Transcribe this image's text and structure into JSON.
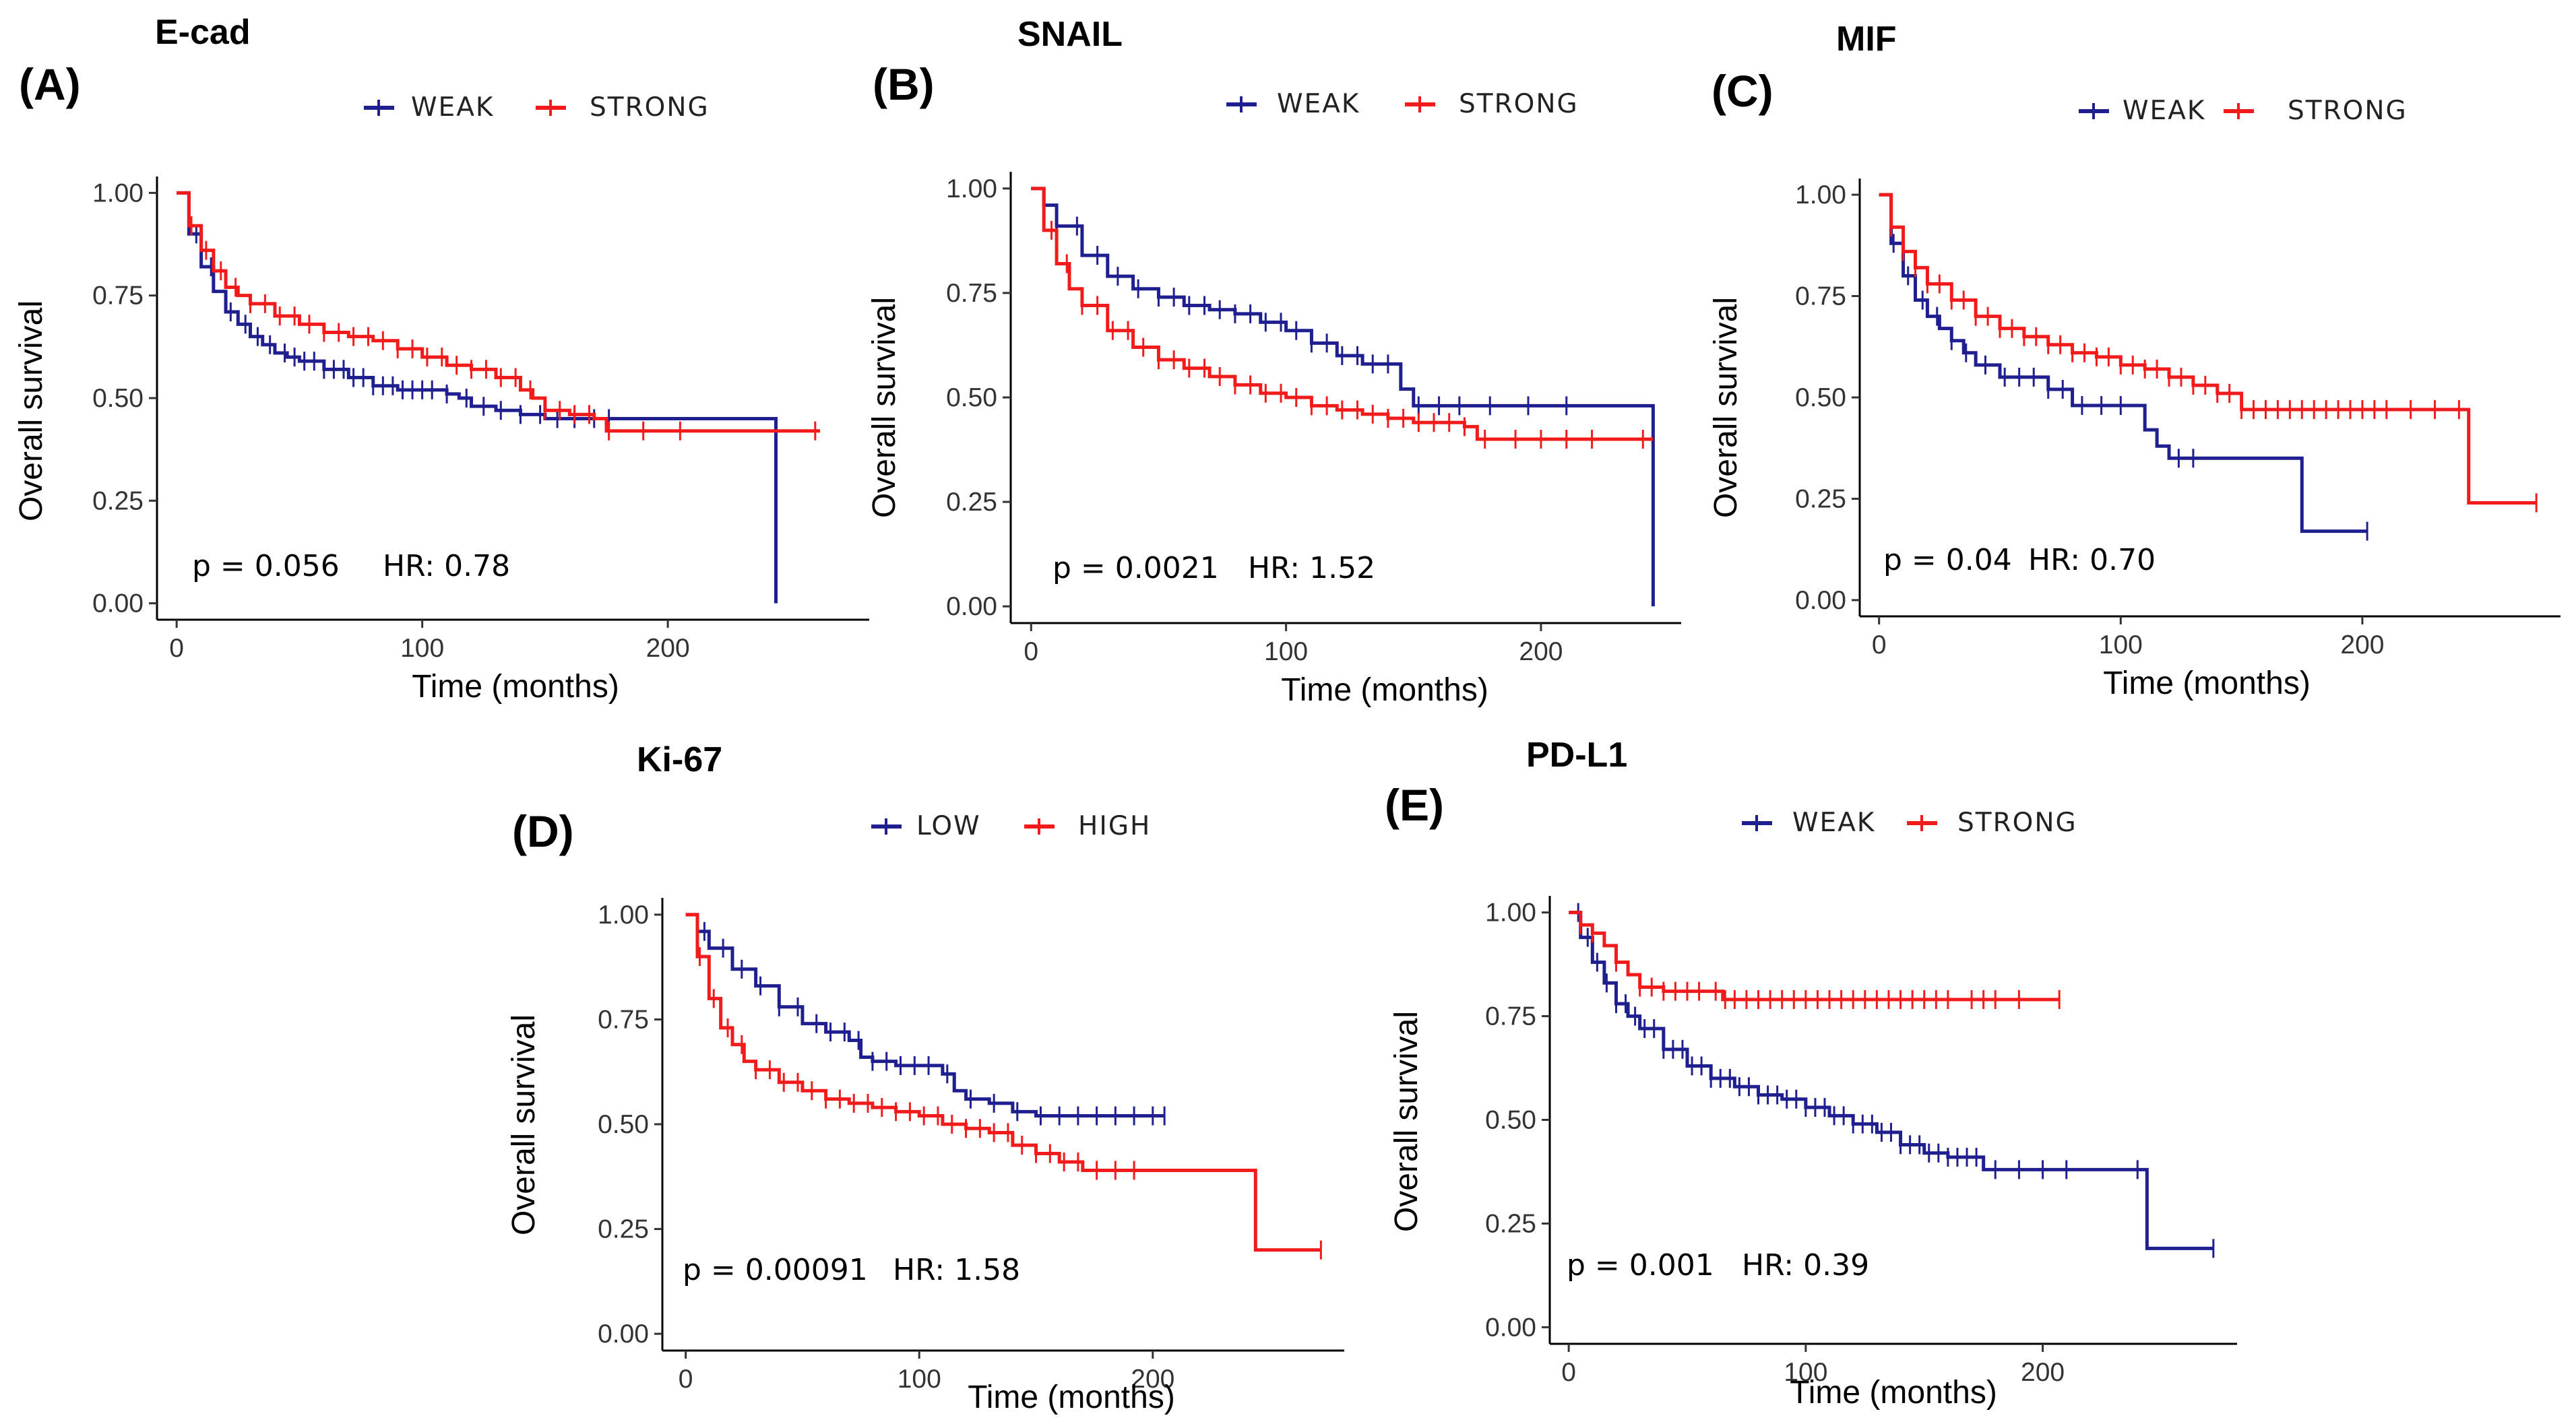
{
  "figure": {
    "colors": {
      "weak": "#1f1f8f",
      "strong": "#f21b1b"
    }
  },
  "chart_data": [
    {
      "type": "line",
      "id": "A",
      "panel_label": "(A)",
      "title": "E-cad",
      "xlabel": "Time (months)",
      "ylabel": "Overall survival",
      "xlim": [
        -8,
        282
      ],
      "ylim": [
        -0.04,
        1.04
      ],
      "xticks": [
        "0",
        "100",
        "200"
      ],
      "yticks": [
        "0.00",
        "0.25",
        "0.50",
        "0.75",
        "1.00"
      ],
      "p_text": "p = 0.056",
      "hr_text": "HR: 0.78",
      "legend": [
        "WEAK",
        "STRONG"
      ],
      "series": [
        {
          "name": "WEAK",
          "color": "#1f1f8f",
          "x": [
            0,
            5,
            10,
            15,
            20,
            25,
            30,
            35,
            40,
            45,
            50,
            60,
            70,
            80,
            90,
            100,
            110,
            115,
            120,
            130,
            140,
            150,
            175,
            244,
            244
          ],
          "y": [
            1.0,
            0.9,
            0.82,
            0.76,
            0.71,
            0.68,
            0.65,
            0.63,
            0.61,
            0.6,
            0.59,
            0.57,
            0.55,
            0.53,
            0.52,
            0.52,
            0.51,
            0.5,
            0.48,
            0.47,
            0.46,
            0.45,
            0.45,
            0.45,
            0.0
          ],
          "censor_x": [
            8,
            14,
            22,
            28,
            33,
            38,
            44,
            48,
            52,
            56,
            60,
            64,
            68,
            72,
            76,
            80,
            84,
            88,
            92,
            96,
            100,
            104,
            110,
            118,
            125,
            132,
            140,
            148,
            155,
            162,
            170,
            176
          ]
        },
        {
          "name": "STRONG",
          "color": "#f21b1b",
          "x": [
            0,
            5,
            10,
            15,
            20,
            25,
            30,
            40,
            50,
            60,
            70,
            80,
            90,
            100,
            110,
            120,
            130,
            140,
            145,
            150,
            160,
            170,
            175,
            262
          ],
          "y": [
            1.0,
            0.92,
            0.86,
            0.81,
            0.77,
            0.75,
            0.73,
            0.7,
            0.68,
            0.66,
            0.65,
            0.64,
            0.62,
            0.6,
            0.58,
            0.57,
            0.55,
            0.52,
            0.5,
            0.47,
            0.46,
            0.45,
            0.42,
            0.42
          ],
          "censor_x": [
            6,
            12,
            18,
            24,
            30,
            36,
            42,
            48,
            54,
            60,
            66,
            72,
            78,
            84,
            90,
            96,
            102,
            108,
            114,
            120,
            126,
            132,
            138,
            144,
            150,
            156,
            162,
            168,
            176,
            190,
            205,
            260
          ]
        }
      ]
    },
    {
      "type": "line",
      "id": "B",
      "panel_label": "(B)",
      "title": "SNAIL",
      "xlabel": "Time (months)",
      "ylabel": "Overall survival",
      "xlim": [
        -8,
        255
      ],
      "ylim": [
        -0.04,
        1.04
      ],
      "xticks": [
        "0",
        "100",
        "200"
      ],
      "yticks": [
        "0.00",
        "0.25",
        "0.50",
        "0.75",
        "1.00"
      ],
      "p_text": "p = 0.0021",
      "hr_text": "HR: 1.52",
      "legend": [
        "WEAK",
        "STRONG"
      ],
      "series": [
        {
          "name": "WEAK",
          "color": "#1f1f8f",
          "x": [
            0,
            5,
            10,
            20,
            30,
            40,
            50,
            60,
            70,
            80,
            90,
            100,
            110,
            120,
            130,
            140,
            145,
            150,
            244,
            244
          ],
          "y": [
            1.0,
            0.96,
            0.91,
            0.84,
            0.79,
            0.76,
            0.74,
            0.72,
            0.71,
            0.7,
            0.68,
            0.66,
            0.63,
            0.6,
            0.58,
            0.58,
            0.52,
            0.48,
            0.48,
            0.0
          ],
          "censor_x": [
            10,
            18,
            26,
            34,
            42,
            50,
            56,
            62,
            68,
            74,
            80,
            86,
            92,
            98,
            104,
            110,
            116,
            122,
            128,
            134,
            140,
            152,
            160,
            168,
            180,
            195,
            210
          ]
        },
        {
          "name": "STRONG",
          "color": "#f21b1b",
          "x": [
            0,
            5,
            10,
            15,
            20,
            30,
            40,
            50,
            60,
            70,
            80,
            90,
            100,
            110,
            120,
            130,
            140,
            150,
            160,
            170,
            175,
            244
          ],
          "y": [
            1.0,
            0.9,
            0.82,
            0.76,
            0.72,
            0.66,
            0.62,
            0.59,
            0.57,
            0.55,
            0.53,
            0.51,
            0.5,
            0.48,
            0.47,
            0.46,
            0.45,
            0.44,
            0.44,
            0.43,
            0.4,
            0.4
          ],
          "censor_x": [
            8,
            14,
            20,
            26,
            32,
            38,
            44,
            50,
            56,
            62,
            68,
            74,
            80,
            86,
            92,
            98,
            104,
            110,
            116,
            122,
            128,
            134,
            140,
            146,
            152,
            158,
            164,
            170,
            178,
            190,
            200,
            210,
            220,
            240
          ]
        }
      ]
    },
    {
      "type": "line",
      "id": "C",
      "panel_label": "(C)",
      "title": "MIF",
      "xlabel": "Time (months)",
      "ylabel": "Overall survival",
      "xlim": [
        -8,
        282
      ],
      "ylim": [
        -0.04,
        1.04
      ],
      "xticks": [
        "0",
        "100",
        "200"
      ],
      "yticks": [
        "0.00",
        "0.25",
        "0.50",
        "0.75",
        "1.00"
      ],
      "p_text": "p = 0.04",
      "hr_text": "HR: 0.70",
      "legend": [
        "WEAK",
        "STRONG"
      ],
      "series": [
        {
          "name": "WEAK",
          "color": "#1f1f8f",
          "x": [
            0,
            5,
            10,
            15,
            20,
            25,
            30,
            35,
            40,
            50,
            60,
            70,
            80,
            90,
            100,
            110,
            115,
            120,
            130,
            140,
            175,
            202
          ],
          "y": [
            1.0,
            0.88,
            0.8,
            0.74,
            0.7,
            0.67,
            0.64,
            0.61,
            0.58,
            0.55,
            0.55,
            0.52,
            0.48,
            0.48,
            0.48,
            0.42,
            0.38,
            0.35,
            0.35,
            0.35,
            0.17,
            0.17
          ],
          "censor_x": [
            6,
            12,
            18,
            24,
            30,
            36,
            44,
            52,
            58,
            64,
            70,
            76,
            84,
            92,
            100,
            124,
            130,
            202
          ]
        },
        {
          "name": "STRONG",
          "color": "#f21b1b",
          "x": [
            0,
            5,
            10,
            15,
            20,
            30,
            40,
            50,
            60,
            70,
            80,
            90,
            100,
            110,
            120,
            130,
            140,
            150,
            160,
            244,
            244,
            272
          ],
          "y": [
            1.0,
            0.92,
            0.86,
            0.82,
            0.78,
            0.74,
            0.7,
            0.67,
            0.65,
            0.63,
            0.61,
            0.6,
            0.58,
            0.57,
            0.55,
            0.53,
            0.51,
            0.47,
            0.47,
            0.47,
            0.24,
            0.24
          ],
          "censor_x": [
            5,
            10,
            15,
            20,
            25,
            30,
            35,
            40,
            45,
            50,
            55,
            60,
            65,
            70,
            75,
            80,
            85,
            90,
            95,
            100,
            105,
            110,
            115,
            120,
            125,
            130,
            135,
            140,
            145,
            150,
            155,
            160,
            165,
            170,
            175,
            180,
            185,
            190,
            195,
            200,
            205,
            210,
            220,
            230,
            240,
            272
          ]
        }
      ]
    },
    {
      "type": "line",
      "id": "D",
      "panel_label": "(D)",
      "title": "Ki-67",
      "xlabel": "Time (months)",
      "ylabel": "Overall survival",
      "xlim": [
        -10,
        282
      ],
      "ylim": [
        -0.04,
        1.04
      ],
      "xticks": [
        "0",
        "100",
        "200"
      ],
      "yticks": [
        "0.00",
        "0.25",
        "0.50",
        "0.75",
        "1.00"
      ],
      "p_text": "p = 0.00091",
      "hr_text": "HR: 1.58",
      "legend": [
        "LOW",
        "HIGH"
      ],
      "series": [
        {
          "name": "LOW",
          "color": "#1f1f8f",
          "x": [
            0,
            5,
            10,
            20,
            30,
            40,
            50,
            60,
            70,
            75,
            80,
            90,
            100,
            110,
            115,
            120,
            130,
            140,
            150,
            160,
            205
          ],
          "y": [
            1.0,
            0.96,
            0.92,
            0.87,
            0.83,
            0.78,
            0.74,
            0.72,
            0.7,
            0.66,
            0.65,
            0.64,
            0.64,
            0.62,
            0.58,
            0.56,
            0.55,
            0.53,
            0.52,
            0.52,
            0.52
          ],
          "censor_x": [
            8,
            16,
            24,
            32,
            40,
            48,
            56,
            62,
            68,
            74,
            80,
            86,
            92,
            98,
            104,
            112,
            122,
            132,
            142,
            152,
            160,
            168,
            176,
            184,
            192,
            200,
            205
          ]
        },
        {
          "name": "HIGH",
          "color": "#f21b1b",
          "x": [
            0,
            5,
            10,
            15,
            20,
            25,
            30,
            40,
            50,
            60,
            70,
            80,
            90,
            100,
            110,
            120,
            130,
            140,
            150,
            160,
            170,
            244,
            244,
            272
          ],
          "y": [
            1.0,
            0.9,
            0.8,
            0.73,
            0.69,
            0.65,
            0.63,
            0.6,
            0.58,
            0.56,
            0.55,
            0.54,
            0.53,
            0.52,
            0.5,
            0.49,
            0.48,
            0.45,
            0.43,
            0.41,
            0.39,
            0.39,
            0.2,
            0.2
          ],
          "censor_x": [
            6,
            12,
            18,
            24,
            30,
            36,
            42,
            48,
            54,
            60,
            66,
            72,
            78,
            84,
            90,
            96,
            102,
            108,
            114,
            120,
            126,
            132,
            138,
            144,
            150,
            156,
            162,
            168,
            176,
            184,
            192,
            272
          ]
        }
      ]
    },
    {
      "type": "line",
      "id": "E",
      "panel_label": "(E)",
      "title": "PD-L1",
      "xlabel": "Time (months)",
      "ylabel": "Overall survival",
      "xlim": [
        -8,
        282
      ],
      "ylim": [
        -0.04,
        1.04
      ],
      "xticks": [
        "0",
        "100",
        "200"
      ],
      "yticks": [
        "0.00",
        "0.25",
        "0.50",
        "0.75",
        "1.00"
      ],
      "p_text": "p = 0.001",
      "hr_text": "HR: 0.39",
      "legend": [
        "WEAK",
        "STRONG"
      ],
      "series": [
        {
          "name": "WEAK",
          "color": "#1f1f8f",
          "x": [
            0,
            5,
            10,
            15,
            20,
            25,
            30,
            40,
            50,
            60,
            70,
            80,
            90,
            100,
            110,
            120,
            130,
            140,
            150,
            160,
            170,
            175,
            244,
            244,
            272
          ],
          "y": [
            1.0,
            0.94,
            0.88,
            0.83,
            0.78,
            0.75,
            0.72,
            0.67,
            0.63,
            0.6,
            0.58,
            0.56,
            0.55,
            0.53,
            0.51,
            0.49,
            0.47,
            0.44,
            0.42,
            0.41,
            0.41,
            0.38,
            0.38,
            0.19,
            0.19
          ],
          "censor_x": [
            4,
            8,
            12,
            16,
            20,
            24,
            28,
            32,
            36,
            40,
            44,
            48,
            52,
            56,
            60,
            64,
            68,
            72,
            76,
            80,
            84,
            88,
            92,
            96,
            100,
            104,
            108,
            112,
            116,
            120,
            124,
            128,
            132,
            136,
            140,
            144,
            148,
            152,
            156,
            160,
            164,
            168,
            172,
            180,
            190,
            200,
            210,
            240,
            272
          ]
        },
        {
          "name": "STRONG",
          "color": "#f21b1b",
          "x": [
            0,
            5,
            10,
            15,
            20,
            25,
            30,
            40,
            60,
            65,
            207
          ],
          "y": [
            1.0,
            0.97,
            0.95,
            0.92,
            0.88,
            0.85,
            0.82,
            0.81,
            0.81,
            0.79,
            0.79
          ],
          "censor_x": [
            5,
            10,
            20,
            30,
            35,
            40,
            45,
            50,
            55,
            62,
            66,
            70,
            75,
            80,
            85,
            90,
            95,
            100,
            105,
            110,
            115,
            120,
            125,
            130,
            135,
            140,
            145,
            150,
            155,
            160,
            170,
            175,
            180,
            190,
            207
          ]
        }
      ]
    }
  ]
}
